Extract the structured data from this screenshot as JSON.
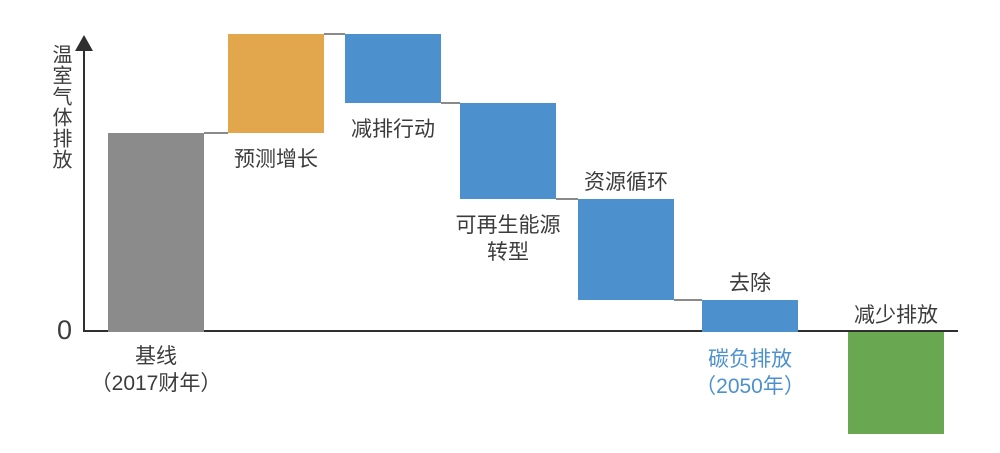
{
  "chart_data": {
    "type": "waterfall",
    "title": "",
    "ylabel": "温室气体排放",
    "xlabel": "",
    "y_zero_tick": "0",
    "axis_note": "y-axis has an upward arrow and only a 0 tick; bar values are relative estimates with baseline = 100",
    "grid": false,
    "legend": "none",
    "steps": [
      {
        "key": "baseline",
        "label": "基线（2017财年）",
        "label_lines": [
          "基线",
          "（2017财年）"
        ],
        "kind": "absolute",
        "value": 100,
        "color_key": "gray",
        "label_pos": "below-axis",
        "label_color_key": "text"
      },
      {
        "key": "projected-growth",
        "label": "预测增长",
        "label_lines": [
          "预测增长"
        ],
        "kind": "delta",
        "value": 50,
        "color_key": "orange",
        "label_pos": "below-bar",
        "label_color_key": "text"
      },
      {
        "key": "emission-reduction-actions",
        "label": "减排行动",
        "label_lines": [
          "减排行动"
        ],
        "kind": "delta",
        "value": -35,
        "color_key": "blue",
        "label_pos": "below-bar",
        "label_color_key": "text"
      },
      {
        "key": "renewable-energy-transition",
        "label": "可再生能源转型",
        "label_lines": [
          "可再生能源",
          "转型"
        ],
        "kind": "delta",
        "value": -48,
        "color_key": "blue",
        "label_pos": "below-bar",
        "label_color_key": "text"
      },
      {
        "key": "resource-circulation",
        "label": "资源循环",
        "label_lines": [
          "资源循环"
        ],
        "kind": "delta",
        "value": -51,
        "color_key": "blue",
        "label_pos": "above-bar",
        "label_color_key": "text"
      },
      {
        "key": "removal",
        "label": "去除",
        "label_lines": [
          "去除"
        ],
        "kind": "delta",
        "value": -16,
        "color_key": "blue",
        "label_pos": "above-bar",
        "label_color_key": "text",
        "sub_label": "碳负排放（2050年）",
        "sub_label_lines": [
          "碳负排放",
          "（2050年）"
        ],
        "sub_label_color_key": "blue"
      },
      {
        "key": "reduced-emissions",
        "label": "减少排放",
        "label_lines": [
          "减少排放"
        ],
        "kind": "from-zero",
        "value": -51,
        "color_key": "green",
        "label_pos": "above-axis",
        "label_color_key": "text"
      }
    ],
    "colors": {
      "gray": "#8b8b8b",
      "orange": "#e2a74d",
      "blue": "#4c91ce",
      "green": "#69a850",
      "text": "#3c3c3c",
      "axis": "#2f2f2f",
      "connector": "#8a8a8a"
    }
  }
}
